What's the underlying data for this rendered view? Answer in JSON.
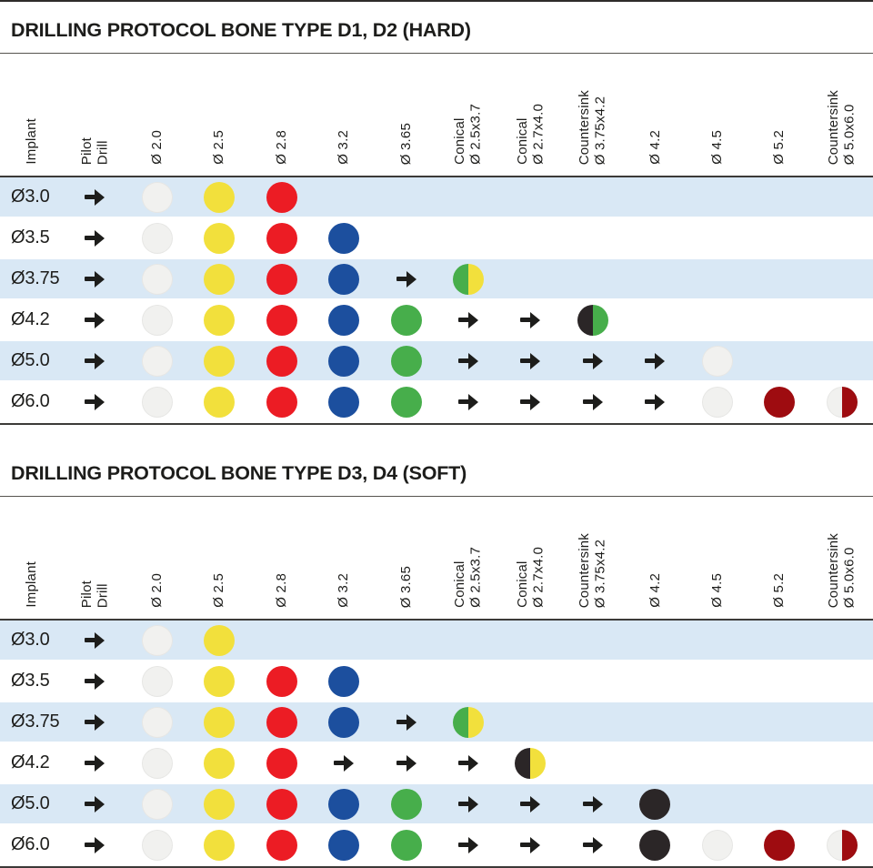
{
  "colors": {
    "band": "#d9e8f5",
    "ink": "#1d1d1b",
    "white": "#f1f1ef",
    "yellow": "#f2e03c",
    "red": "#ec1c24",
    "blue": "#1c4f9e",
    "green": "#47ae4b",
    "black": "#2b2627",
    "darkred": "#9e0c10"
  },
  "chart_data": [
    {
      "type": "table",
      "title": "DRILLING PROTOCOL BONE TYPE D1, D2 (HARD)",
      "columns": [
        "Implant",
        "Pilot\nDrill",
        "Ø 2.0",
        "Ø 2.5",
        "Ø 2.8",
        "Ø 3.2",
        "Ø 3.65",
        "Conical\nØ 2.5x3.7",
        "Conical\nØ 2.7x4.0",
        "Countersink\nØ 3.75x4.2",
        "Ø 4.2",
        "Ø 4.5",
        "Ø 5.2",
        "Countersink\nØ 5.0x6.0"
      ],
      "rows": [
        {
          "implant": "Ø3.0",
          "cells": [
            "arrow",
            "dot:white",
            "dot:yellow",
            "dot:red",
            "",
            "",
            "",
            "",
            "",
            "",
            "",
            "",
            ""
          ]
        },
        {
          "implant": "Ø3.5",
          "cells": [
            "arrow",
            "dot:white",
            "dot:yellow",
            "dot:red",
            "dot:blue",
            "",
            "",
            "",
            "",
            "",
            "",
            "",
            ""
          ]
        },
        {
          "implant": "Ø3.75",
          "cells": [
            "arrow",
            "dot:white",
            "dot:yellow",
            "dot:red",
            "dot:blue",
            "arrow",
            "split:green,yellow",
            "",
            "",
            "",
            "",
            "",
            ""
          ]
        },
        {
          "implant": "Ø4.2",
          "cells": [
            "arrow",
            "dot:white",
            "dot:yellow",
            "dot:red",
            "dot:blue",
            "dot:green",
            "arrow",
            "arrow",
            "split:black,green",
            "",
            "",
            "",
            ""
          ]
        },
        {
          "implant": "Ø5.0",
          "cells": [
            "arrow",
            "dot:white",
            "dot:yellow",
            "dot:red",
            "dot:blue",
            "dot:green",
            "arrow",
            "arrow",
            "arrow",
            "arrow",
            "dot:white",
            "",
            ""
          ]
        },
        {
          "implant": "Ø6.0",
          "cells": [
            "arrow",
            "dot:white",
            "dot:yellow",
            "dot:red",
            "dot:blue",
            "dot:green",
            "arrow",
            "arrow",
            "arrow",
            "arrow",
            "dot:white",
            "dot:darkred",
            "split:white,darkred"
          ]
        }
      ]
    },
    {
      "type": "table",
      "title": "DRILLING PROTOCOL BONE TYPE D3, D4 (SOFT)",
      "columns": [
        "Implant",
        "Pilot\nDrill",
        "Ø 2.0",
        "Ø 2.5",
        "Ø 2.8",
        "Ø 3.2",
        "Ø 3.65",
        "Conical\nØ 2.5x3.7",
        "Conical\nØ 2.7x4.0",
        "Countersink\nØ 3.75x4.2",
        "Ø 4.2",
        "Ø 4.5",
        "Ø 5.2",
        "Countersink\nØ 5.0x6.0"
      ],
      "rows": [
        {
          "implant": "Ø3.0",
          "cells": [
            "arrow",
            "dot:white",
            "dot:yellow",
            "",
            "",
            "",
            "",
            "",
            "",
            "",
            "",
            "",
            ""
          ]
        },
        {
          "implant": "Ø3.5",
          "cells": [
            "arrow",
            "dot:white",
            "dot:yellow",
            "dot:red",
            "dot:blue",
            "",
            "",
            "",
            "",
            "",
            "",
            "",
            ""
          ]
        },
        {
          "implant": "Ø3.75",
          "cells": [
            "arrow",
            "dot:white",
            "dot:yellow",
            "dot:red",
            "dot:blue",
            "arrow",
            "split:green,yellow",
            "",
            "",
            "",
            "",
            "",
            ""
          ]
        },
        {
          "implant": "Ø4.2",
          "cells": [
            "arrow",
            "dot:white",
            "dot:yellow",
            "dot:red",
            "arrow",
            "arrow",
            "arrow",
            "split:black,yellow",
            "",
            "",
            "",
            "",
            ""
          ]
        },
        {
          "implant": "Ø5.0",
          "cells": [
            "arrow",
            "dot:white",
            "dot:yellow",
            "dot:red",
            "dot:blue",
            "dot:green",
            "arrow",
            "arrow",
            "arrow",
            "dot:black",
            "",
            "",
            ""
          ]
        },
        {
          "implant": "Ø6.0",
          "cells": [
            "arrow",
            "dot:white",
            "dot:yellow",
            "dot:red",
            "dot:blue",
            "dot:green",
            "arrow",
            "arrow",
            "arrow",
            "dot:black",
            "dot:white",
            "dot:darkred",
            "split:white,darkred"
          ]
        }
      ]
    }
  ]
}
